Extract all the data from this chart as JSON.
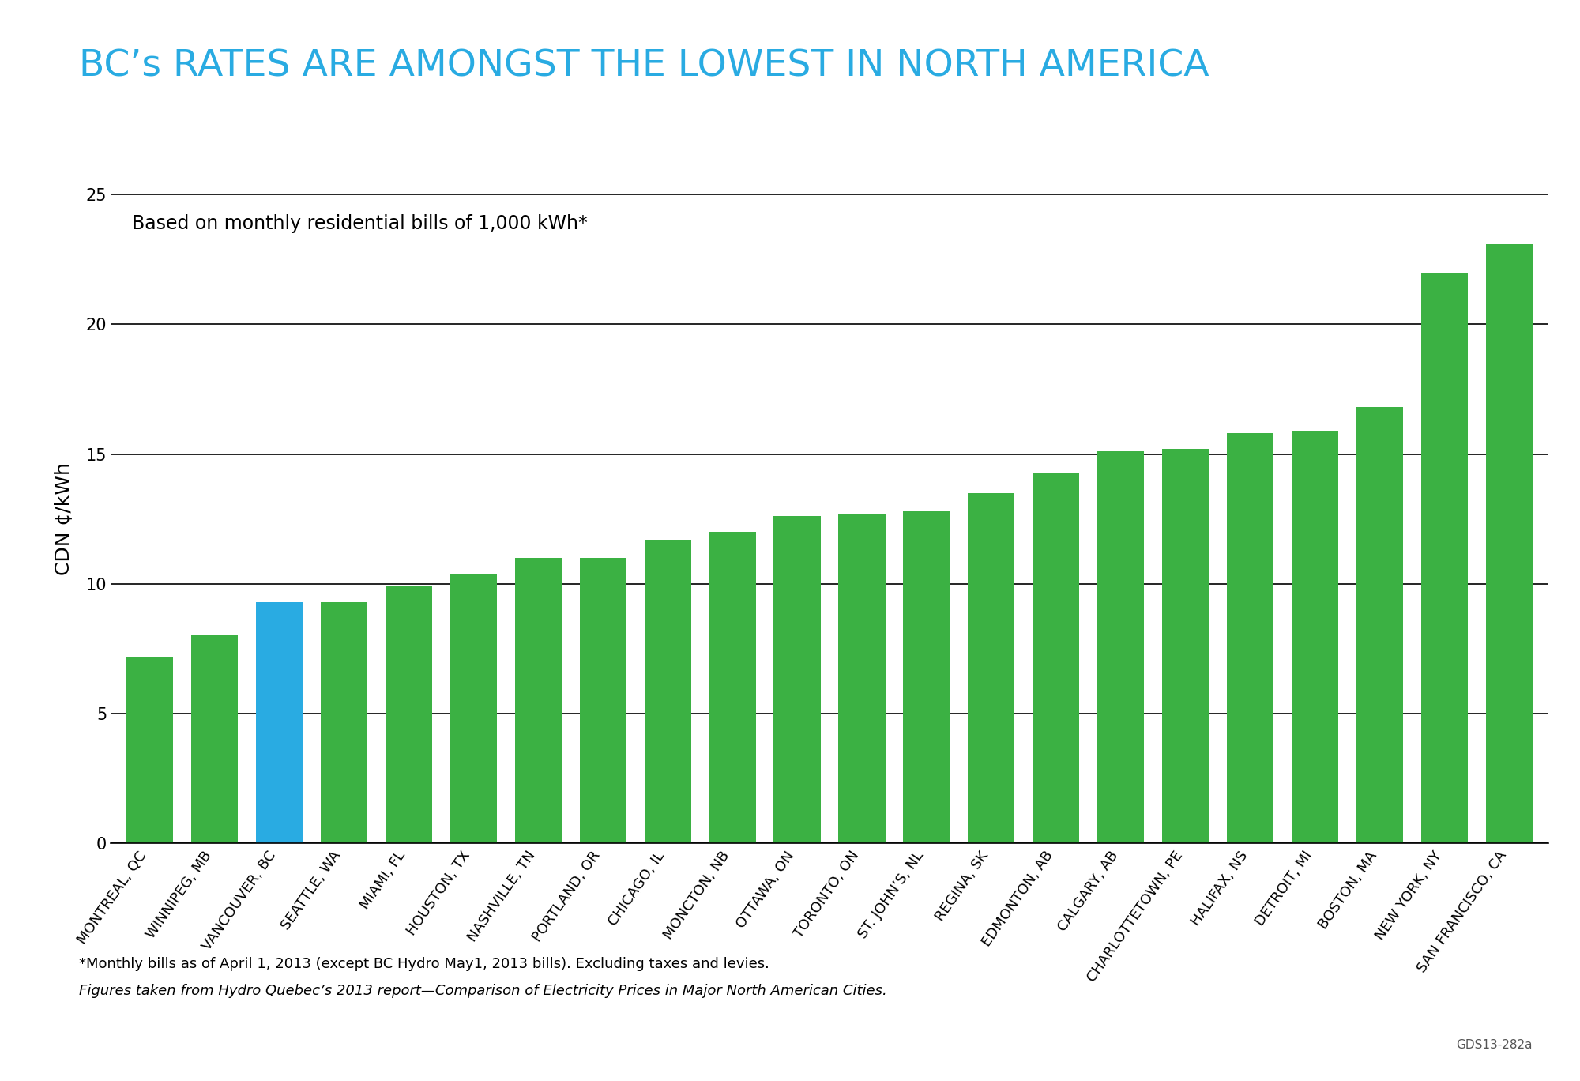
{
  "title": "BC’s RATES ARE AMONGST THE LOWEST IN NORTH AMERICA",
  "title_color": "#29ABE2",
  "annotation": "Based on monthly residential bills of 1,000 kWh*",
  "ylabel": "CDN ¢/kWh",
  "footnote1": "*Monthly bills as of April 1, 2013 (except BC Hydro May1, 2013 bills). Excluding taxes and levies.",
  "footnote2": "Figures taken from Hydro Quebec’s 2013 report—Comparison of Electricity Prices in Major North American Cities.",
  "watermark": "GDS13-282a",
  "categories": [
    "MONTREAL, QC",
    "WINNIPEG, MB",
    "VANCOUVER, BC",
    "SEATTLE, WA",
    "MIAMI, FL",
    "HOUSTON, TX",
    "NASHVILLE, TN",
    "PORTLAND, OR",
    "CHICAGO, IL",
    "MONCTON, NB",
    "OTTAWA, ON",
    "TORONTO, ON",
    "ST. JOHN’S, NL",
    "REGINA, SK",
    "EDMONTON, AB",
    "CALGARY, AB",
    "CHARLOTTETOWN, PE",
    "HALIFAX, NS",
    "DETROIT, MI",
    "BOSTON, MA",
    "NEW YORK, NY",
    "SAN FRANCISCO, CA"
  ],
  "values": [
    7.2,
    8.0,
    9.3,
    9.3,
    9.9,
    10.4,
    11.0,
    11.0,
    11.7,
    12.0,
    12.6,
    12.7,
    12.8,
    13.5,
    14.3,
    15.1,
    15.2,
    15.8,
    15.9,
    16.8,
    22.0,
    23.1
  ],
  "bar_colors": [
    "#3BB143",
    "#3BB143",
    "#29ABE2",
    "#3BB143",
    "#3BB143",
    "#3BB143",
    "#3BB143",
    "#3BB143",
    "#3BB143",
    "#3BB143",
    "#3BB143",
    "#3BB143",
    "#3BB143",
    "#3BB143",
    "#3BB143",
    "#3BB143",
    "#3BB143",
    "#3BB143",
    "#3BB143",
    "#3BB143",
    "#3BB143",
    "#3BB143"
  ],
  "ylim": [
    0,
    25
  ],
  "yticks": [
    0,
    5,
    10,
    15,
    20,
    25
  ],
  "background_color": "#FFFFFF",
  "grid_color": "#000000",
  "title_fontsize": 34,
  "ylabel_fontsize": 18,
  "tick_fontsize": 13,
  "annotation_fontsize": 17,
  "footnote_fontsize": 13
}
